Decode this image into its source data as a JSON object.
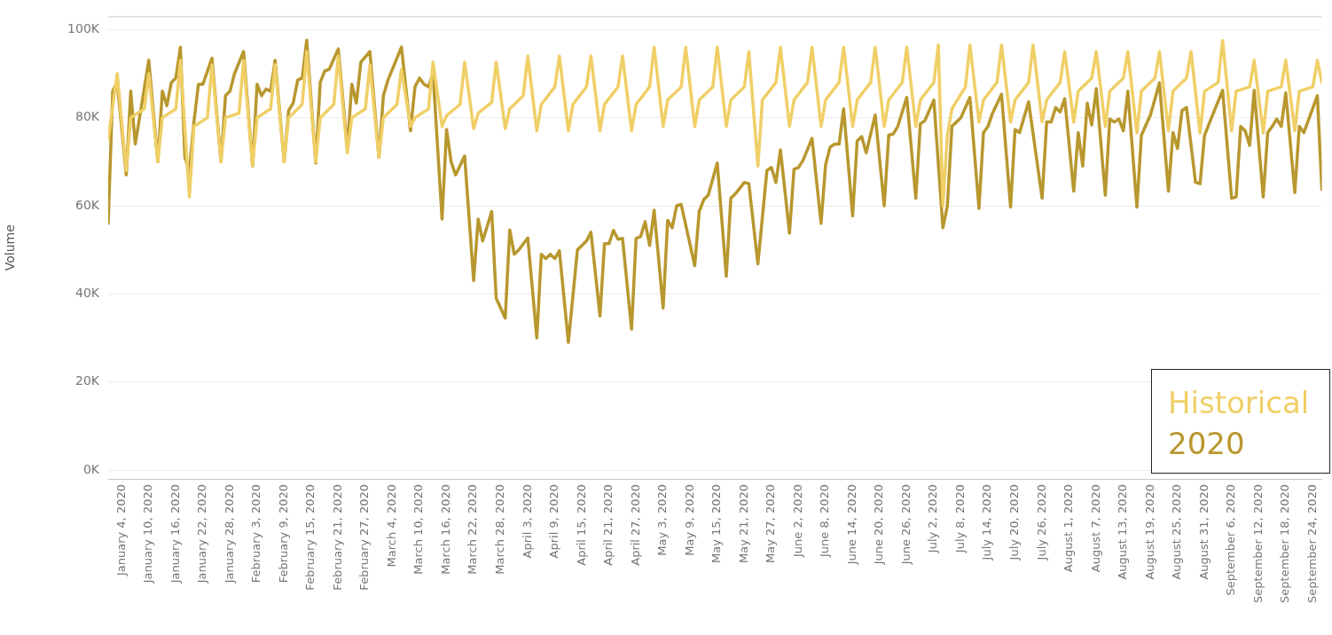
{
  "chart_data": {
    "type": "line",
    "ylabel": "Volume",
    "legend": "bottom right",
    "grid": "y",
    "xlim": [
      "2020-01-01",
      "2020-09-26"
    ],
    "ylim": [
      -2000,
      103000
    ],
    "yticks": [
      {
        "value": 0,
        "label": "0K"
      },
      {
        "value": 20000,
        "label": "20K"
      },
      {
        "value": 40000,
        "label": "40K"
      },
      {
        "value": 60000,
        "label": "60K"
      },
      {
        "value": 80000,
        "label": "80K"
      },
      {
        "value": 100000,
        "label": "100K"
      }
    ],
    "xticks": [
      {
        "value": "2020-01-04",
        "label": "January 4, 2020"
      },
      {
        "value": "2020-01-10",
        "label": "January 10, 2020"
      },
      {
        "value": "2020-01-16",
        "label": "January 16, 2020"
      },
      {
        "value": "2020-01-22",
        "label": "January 22, 2020"
      },
      {
        "value": "2020-01-28",
        "label": "January 28, 2020"
      },
      {
        "value": "2020-02-03",
        "label": "February 3, 2020"
      },
      {
        "value": "2020-02-09",
        "label": "February 9, 2020"
      },
      {
        "value": "2020-02-15",
        "label": "February 15, 2020"
      },
      {
        "value": "2020-02-21",
        "label": "February 21, 2020"
      },
      {
        "value": "2020-02-27",
        "label": "February 27, 2020"
      },
      {
        "value": "2020-03-04",
        "label": "March 4, 2020"
      },
      {
        "value": "2020-03-10",
        "label": "March 10, 2020"
      },
      {
        "value": "2020-03-16",
        "label": "March 16, 2020"
      },
      {
        "value": "2020-03-22",
        "label": "March 22, 2020"
      },
      {
        "value": "2020-03-28",
        "label": "March 28, 2020"
      },
      {
        "value": "2020-04-03",
        "label": "April 3, 2020"
      },
      {
        "value": "2020-04-09",
        "label": "April 9, 2020"
      },
      {
        "value": "2020-04-15",
        "label": "April 15, 2020"
      },
      {
        "value": "2020-04-21",
        "label": "April 21, 2020"
      },
      {
        "value": "2020-04-27",
        "label": "April 27, 2020"
      },
      {
        "value": "2020-05-03",
        "label": "May 3, 2020"
      },
      {
        "value": "2020-05-09",
        "label": "May 9, 2020"
      },
      {
        "value": "2020-05-15",
        "label": "May 15, 2020"
      },
      {
        "value": "2020-05-21",
        "label": "May 21, 2020"
      },
      {
        "value": "2020-05-27",
        "label": "May 27, 2020"
      },
      {
        "value": "2020-06-02",
        "label": "June 2, 2020"
      },
      {
        "value": "2020-06-08",
        "label": "June 8, 2020"
      },
      {
        "value": "2020-06-14",
        "label": "June 14, 2020"
      },
      {
        "value": "2020-06-20",
        "label": "June 20, 2020"
      },
      {
        "value": "2020-06-26",
        "label": "June 26, 2020"
      },
      {
        "value": "2020-07-02",
        "label": "July 2, 2020"
      },
      {
        "value": "2020-07-08",
        "label": "July 8, 2020"
      },
      {
        "value": "2020-07-14",
        "label": "July 14, 2020"
      },
      {
        "value": "2020-07-20",
        "label": "July 20, 2020"
      },
      {
        "value": "2020-07-26",
        "label": "July 26, 2020"
      },
      {
        "value": "2020-08-01",
        "label": "August 1, 2020"
      },
      {
        "value": "2020-08-07",
        "label": "August 7, 2020"
      },
      {
        "value": "2020-08-13",
        "label": "August 13, 2020"
      },
      {
        "value": "2020-08-19",
        "label": "August 19, 2020"
      },
      {
        "value": "2020-08-25",
        "label": "August 25, 2020"
      },
      {
        "value": "2020-08-31",
        "label": "August 31, 2020"
      },
      {
        "value": "2020-09-06",
        "label": "September 6, 2020"
      },
      {
        "value": "2020-09-12",
        "label": "September 12, 2020"
      },
      {
        "value": "2020-09-18",
        "label": "September 18, 2020"
      },
      {
        "value": "2020-09-24",
        "label": "September 24, 2020"
      }
    ],
    "series": [
      {
        "name": "Historical",
        "color": "#f0cf67",
        "x": [
          "2020-01-01",
          "2020-01-03",
          "2020-01-05",
          "2020-01-06",
          "2020-01-09",
          "2020-01-10",
          "2020-01-12",
          "2020-01-13",
          "2020-01-16",
          "2020-01-17",
          "2020-01-19",
          "2020-01-20",
          "2020-01-23",
          "2020-01-24",
          "2020-01-26",
          "2020-01-27",
          "2020-01-30",
          "2020-01-31",
          "2020-02-02",
          "2020-02-03",
          "2020-02-06",
          "2020-02-07",
          "2020-02-09",
          "2020-02-10",
          "2020-02-13",
          "2020-02-14",
          "2020-02-16",
          "2020-02-17",
          "2020-02-20",
          "2020-02-21",
          "2020-02-23",
          "2020-02-24",
          "2020-02-27",
          "2020-02-28",
          "2020-03-01",
          "2020-03-02",
          "2020-03-05",
          "2020-03-06",
          "2020-03-08",
          "2020-03-09",
          "2020-03-12",
          "2020-03-13",
          "2020-03-15",
          "2020-03-16",
          "2020-03-19",
          "2020-03-20",
          "2020-03-22",
          "2020-03-23",
          "2020-03-26",
          "2020-03-27",
          "2020-03-29",
          "2020-03-30",
          "2020-04-02",
          "2020-04-03",
          "2020-04-05",
          "2020-04-06",
          "2020-04-09",
          "2020-04-10",
          "2020-04-12",
          "2020-04-13",
          "2020-04-16",
          "2020-04-17",
          "2020-04-19",
          "2020-04-20",
          "2020-04-23",
          "2020-04-24",
          "2020-04-26",
          "2020-04-27",
          "2020-04-30",
          "2020-05-01",
          "2020-05-03",
          "2020-05-04",
          "2020-05-07",
          "2020-05-08",
          "2020-05-10",
          "2020-05-11",
          "2020-05-14",
          "2020-05-15",
          "2020-05-17",
          "2020-05-18",
          "2020-05-21",
          "2020-05-22",
          "2020-05-24",
          "2020-05-25",
          "2020-05-28",
          "2020-05-29",
          "2020-05-31",
          "2020-06-01",
          "2020-06-04",
          "2020-06-05",
          "2020-06-07",
          "2020-06-08",
          "2020-06-11",
          "2020-06-12",
          "2020-06-14",
          "2020-06-15",
          "2020-06-18",
          "2020-06-19",
          "2020-06-21",
          "2020-06-22",
          "2020-06-25",
          "2020-06-26",
          "2020-06-28",
          "2020-06-29",
          "2020-07-02",
          "2020-07-03",
          "2020-07-04",
          "2020-07-05",
          "2020-07-06",
          "2020-07-09",
          "2020-07-10",
          "2020-07-12",
          "2020-07-13",
          "2020-07-16",
          "2020-07-17",
          "2020-07-19",
          "2020-07-20",
          "2020-07-23",
          "2020-07-24",
          "2020-07-26",
          "2020-07-27",
          "2020-07-30",
          "2020-07-31",
          "2020-08-02",
          "2020-08-03",
          "2020-08-06",
          "2020-08-07",
          "2020-08-09",
          "2020-08-10",
          "2020-08-13",
          "2020-08-14",
          "2020-08-16",
          "2020-08-17",
          "2020-08-20",
          "2020-08-21",
          "2020-08-23",
          "2020-08-24",
          "2020-08-27",
          "2020-08-28",
          "2020-08-30",
          "2020-08-31",
          "2020-09-03",
          "2020-09-04",
          "2020-09-06",
          "2020-09-07",
          "2020-09-10",
          "2020-09-11",
          "2020-09-13",
          "2020-09-14",
          "2020-09-17",
          "2020-09-18",
          "2020-09-20",
          "2020-09-21",
          "2020-09-24",
          "2020-09-25",
          "2020-09-26"
        ],
        "values": [
          75000,
          90000,
          68000,
          80000,
          82000,
          90000,
          70000,
          80000,
          82000,
          93000,
          62000,
          78000,
          80000,
          92000,
          70000,
          80000,
          81000,
          93000,
          69000,
          80000,
          82000,
          92000,
          70000,
          80000,
          83000,
          95000,
          70000,
          80000,
          83000,
          94000,
          72000,
          80000,
          82000,
          92000,
          71000,
          80000,
          83000,
          91000,
          78000,
          80000,
          82000,
          92600,
          78000,
          80500,
          83000,
          92600,
          77500,
          81000,
          83500,
          92600,
          77500,
          82000,
          85000,
          94000,
          77000,
          83000,
          87000,
          94000,
          77000,
          83000,
          87000,
          94000,
          77000,
          83000,
          87000,
          94000,
          77000,
          83000,
          87000,
          96000,
          78000,
          84000,
          87000,
          96000,
          78000,
          84000,
          87000,
          96000,
          78000,
          84000,
          87000,
          95000,
          69000,
          84000,
          88000,
          96000,
          78000,
          84000,
          88000,
          96000,
          78000,
          84000,
          88000,
          96000,
          78000,
          84000,
          88000,
          96000,
          78000,
          84000,
          88000,
          96000,
          78000,
          84000,
          88000,
          96500,
          60000,
          76000,
          82000,
          87000,
          96500,
          79000,
          84000,
          88000,
          96500,
          79000,
          84000,
          88000,
          96500,
          79000,
          84000,
          88000,
          95000,
          79000,
          86000,
          89000,
          95000,
          78000,
          86000,
          89000,
          95000,
          76500,
          86000,
          89000,
          95000,
          77000,
          86000,
          89000,
          95000,
          76500,
          86000,
          88000,
          97500,
          77000,
          86000,
          87000,
          93000,
          76500,
          86000,
          87000,
          93000,
          77000,
          86000,
          87000,
          93000,
          88000
        ]
      },
      {
        "name": "2020",
        "color": "#b8972e",
        "x": [
          "2020-01-01",
          "2020-01-02",
          "2020-01-03",
          "2020-01-05",
          "2020-01-06",
          "2020-01-07",
          "2020-01-10",
          "2020-01-12",
          "2020-01-13",
          "2020-01-14",
          "2020-01-15",
          "2020-01-16",
          "2020-01-17",
          "2020-01-18",
          "2020-01-19",
          "2020-01-20",
          "2020-01-21",
          "2020-01-22",
          "2020-01-24",
          "2020-01-26",
          "2020-01-27",
          "2020-01-28",
          "2020-01-29",
          "2020-01-31",
          "2020-02-02",
          "2020-02-03",
          "2020-02-04",
          "2020-02-05",
          "2020-02-06",
          "2020-02-07",
          "2020-02-09",
          "2020-02-10",
          "2020-02-11",
          "2020-02-12",
          "2020-02-13",
          "2020-02-14",
          "2020-02-16",
          "2020-02-17",
          "2020-02-18",
          "2020-02-19",
          "2020-02-21",
          "2020-02-23",
          "2020-02-24",
          "2020-02-25",
          "2020-02-26",
          "2020-02-28",
          "2020-03-01",
          "2020-03-02",
          "2020-03-03",
          "2020-03-06",
          "2020-03-08",
          "2020-03-09",
          "2020-03-10",
          "2020-03-11",
          "2020-03-12",
          "2020-03-13",
          "2020-03-15",
          "2020-03-16",
          "2020-03-17",
          "2020-03-18",
          "2020-03-20",
          "2020-03-22",
          "2020-03-23",
          "2020-03-24",
          "2020-03-26",
          "2020-03-27",
          "2020-03-29",
          "2020-03-30",
          "2020-03-31",
          "2020-04-01",
          "2020-04-03",
          "2020-04-05",
          "2020-04-06",
          "2020-04-07",
          "2020-04-08",
          "2020-04-09",
          "2020-04-10",
          "2020-04-12",
          "2020-04-14",
          "2020-04-16",
          "2020-04-17",
          "2020-04-19",
          "2020-04-20",
          "2020-04-21",
          "2020-04-22",
          "2020-04-23",
          "2020-04-24",
          "2020-04-26",
          "2020-04-27",
          "2020-04-28",
          "2020-04-29",
          "2020-04-30",
          "2020-05-01",
          "2020-05-03",
          "2020-05-04",
          "2020-05-05",
          "2020-05-06",
          "2020-05-07",
          "2020-05-10",
          "2020-05-11",
          "2020-05-12",
          "2020-05-13",
          "2020-05-15",
          "2020-05-17",
          "2020-05-18",
          "2020-05-19",
          "2020-05-21",
          "2020-05-22",
          "2020-05-24",
          "2020-05-26",
          "2020-05-27",
          "2020-05-28",
          "2020-05-29",
          "2020-05-31",
          "2020-06-01",
          "2020-06-02",
          "2020-06-03",
          "2020-06-05",
          "2020-06-07",
          "2020-06-08",
          "2020-06-09",
          "2020-06-10",
          "2020-06-11",
          "2020-06-12",
          "2020-06-14",
          "2020-06-15",
          "2020-06-16",
          "2020-06-17",
          "2020-06-19",
          "2020-06-21",
          "2020-06-22",
          "2020-06-23",
          "2020-06-24",
          "2020-06-26",
          "2020-06-28",
          "2020-06-29",
          "2020-06-30",
          "2020-07-02",
          "2020-07-04",
          "2020-07-05",
          "2020-07-06",
          "2020-07-07",
          "2020-07-08",
          "2020-07-10",
          "2020-07-12",
          "2020-07-13",
          "2020-07-14",
          "2020-07-15",
          "2020-07-17",
          "2020-07-19",
          "2020-07-20",
          "2020-07-21",
          "2020-07-23",
          "2020-07-26",
          "2020-07-27",
          "2020-07-28",
          "2020-07-29",
          "2020-07-30",
          "2020-07-31",
          "2020-08-02",
          "2020-08-03",
          "2020-08-04",
          "2020-08-05",
          "2020-08-06",
          "2020-08-07",
          "2020-08-09",
          "2020-08-10",
          "2020-08-11",
          "2020-08-12",
          "2020-08-13",
          "2020-08-14",
          "2020-08-16",
          "2020-08-17",
          "2020-08-19",
          "2020-08-21",
          "2020-08-23",
          "2020-08-24",
          "2020-08-25",
          "2020-08-26",
          "2020-08-27",
          "2020-08-29",
          "2020-08-30",
          "2020-08-31",
          "2020-09-01",
          "2020-09-04",
          "2020-09-06",
          "2020-09-07",
          "2020-09-08",
          "2020-09-09",
          "2020-09-10",
          "2020-09-11",
          "2020-09-13",
          "2020-09-14",
          "2020-09-15",
          "2020-09-16",
          "2020-09-17",
          "2020-09-18",
          "2020-09-20",
          "2020-09-21",
          "2020-09-22",
          "2020-09-25",
          "2020-09-26"
        ],
        "values": [
          56000,
          86000,
          88000,
          67000,
          86000,
          74000,
          93000,
          70000,
          86000,
          82700,
          88000,
          89000,
          96000,
          71000,
          68000,
          79000,
          87600,
          87600,
          93500,
          70000,
          85000,
          86000,
          90000,
          95000,
          69000,
          87600,
          85000,
          86500,
          86000,
          93000,
          70000,
          81600,
          83300,
          88500,
          89000,
          97600,
          69700,
          88000,
          90600,
          91000,
          95600,
          73000,
          87600,
          83300,
          92600,
          95000,
          71000,
          85000,
          88500,
          96000,
          77000,
          87000,
          89000,
          87600,
          87000,
          90000,
          57000,
          77300,
          70000,
          67000,
          71300,
          43000,
          57000,
          52000,
          58700,
          39000,
          34500,
          54500,
          49000,
          50000,
          52700,
          30000,
          49000,
          48000,
          49000,
          48000,
          49800,
          29000,
          50000,
          52000,
          54000,
          35000,
          51400,
          51400,
          54400,
          52400,
          52600,
          32000,
          52600,
          53000,
          56400,
          51000,
          59000,
          36800,
          56700,
          55000,
          60000,
          60300,
          46400,
          58700,
          61400,
          62400,
          69700,
          44000,
          61700,
          62700,
          65300,
          65000,
          46800,
          68000,
          68700,
          65300,
          72700,
          53800,
          68300,
          68700,
          70300,
          75300,
          56000,
          69300,
          73300,
          74000,
          74000,
          82000,
          57700,
          74700,
          75700,
          72000,
          80600,
          60000,
          76000,
          76300,
          78000,
          84600,
          61700,
          78600,
          79300,
          84000,
          55000,
          60000,
          78000,
          79000,
          80000,
          84600,
          59400,
          76600,
          78000,
          81000,
          85300,
          59700,
          77300,
          76600,
          83600,
          61700,
          79000,
          79000,
          82300,
          81300,
          84300,
          63300,
          76600,
          69000,
          83300,
          78300,
          86600,
          62400,
          79700,
          79000,
          79700,
          77000,
          86000,
          59700,
          76000,
          80600,
          87900,
          63300,
          76600,
          73000,
          81600,
          82300,
          65300,
          65000,
          76000,
          78600,
          86200,
          61700,
          62000,
          78000,
          77000,
          73700,
          86200,
          62000,
          76600,
          78000,
          79700,
          78000,
          85600,
          63000,
          78000,
          76600,
          85000,
          63700
        ]
      }
    ]
  }
}
